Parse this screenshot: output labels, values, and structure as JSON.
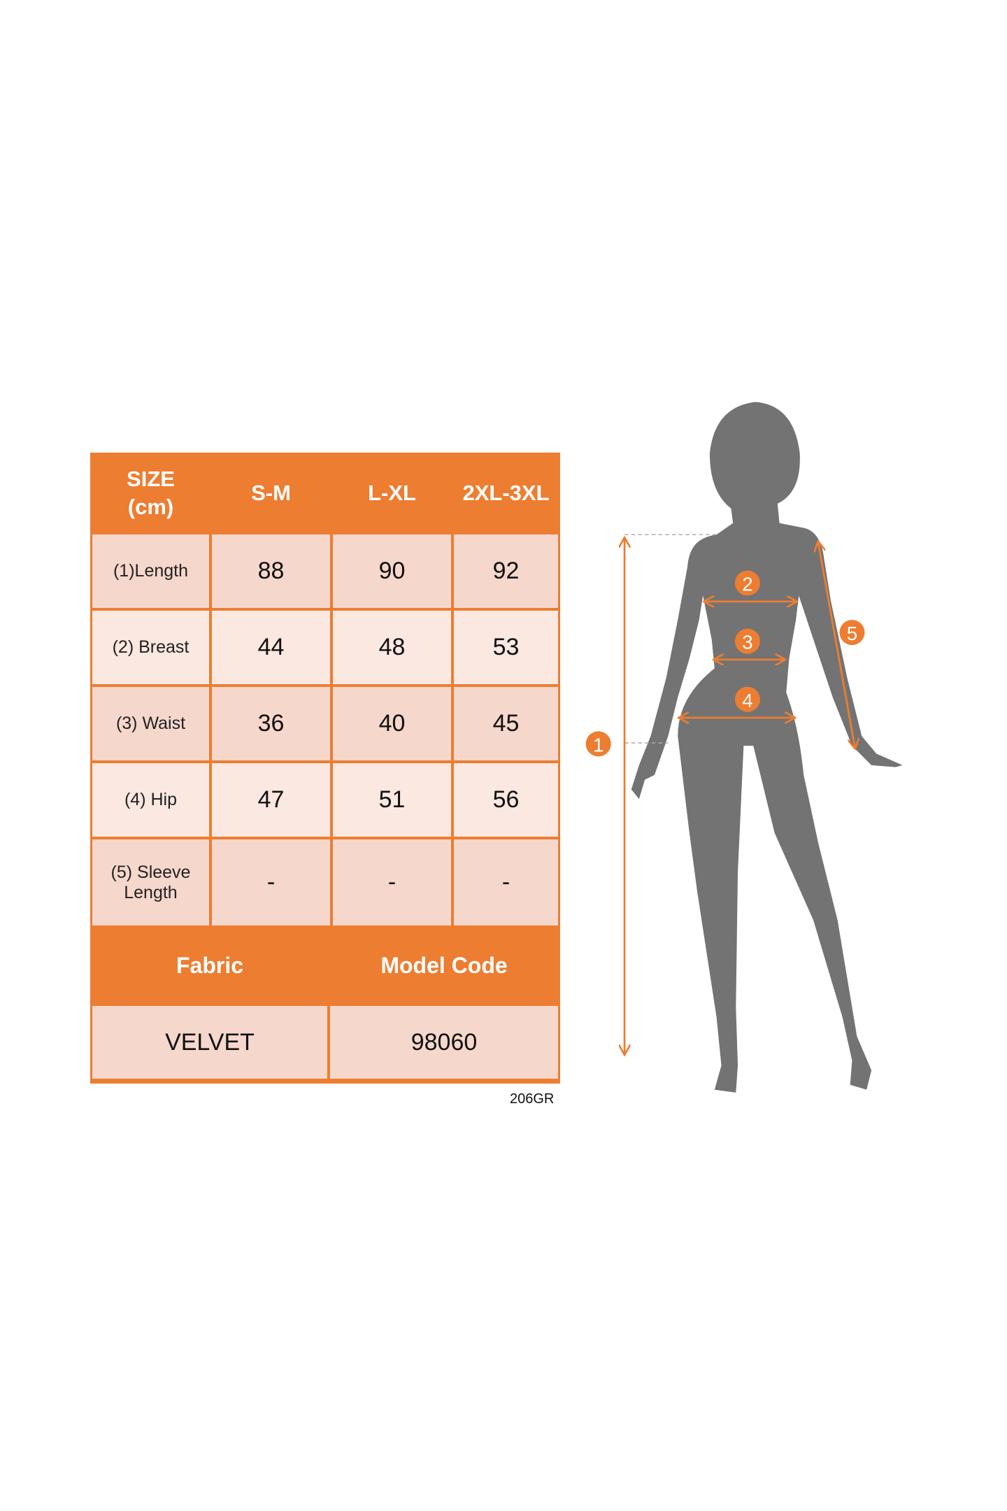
{
  "size_table": {
    "header": [
      "SIZE\n(cm)",
      "S-M",
      "L-XL",
      "2XL-3XL"
    ],
    "header_size_line1": "SIZE",
    "header_size_line2": "(cm)",
    "rows": [
      {
        "label": "(1)Length",
        "values": [
          "88",
          "90",
          "92"
        ]
      },
      {
        "label": "(2) Breast",
        "values": [
          "44",
          "48",
          "53"
        ]
      },
      {
        "label": "(3) Waist",
        "values": [
          "36",
          "40",
          "45"
        ]
      },
      {
        "label": "(4) Hip",
        "values": [
          "47",
          "51",
          "56"
        ]
      },
      {
        "label_line1": "(5) Sleeve",
        "label_line2": "Length",
        "values": [
          "-",
          "-",
          "-"
        ]
      }
    ]
  },
  "info_table": {
    "fabric_label": "Fabric",
    "model_code_label": "Model Code",
    "fabric_value": "VELVET",
    "model_code_value": "98060"
  },
  "product_code": "206GR",
  "figure": {
    "markers": [
      "1",
      "2",
      "3",
      "4",
      "5"
    ]
  },
  "colors": {
    "accent": "#ED7D31",
    "cell_dark": "#F6D7CC",
    "cell_light": "#FBE8E1",
    "silhouette": "#737373"
  }
}
